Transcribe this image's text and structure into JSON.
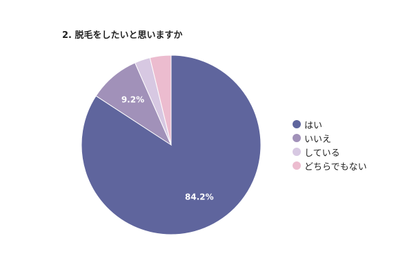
{
  "chart_data": {
    "type": "pie",
    "title": "2. 脱毛をしたいと思いますか",
    "categories": [
      "はい",
      "いいえ",
      "している",
      "どちらでもない"
    ],
    "values": [
      84.2,
      9.2,
      2.8,
      3.8
    ],
    "colors": [
      "#5f659d",
      "#a191b9",
      "#d7c8e2",
      "#ecbccf"
    ],
    "data_labels": [
      "84.2%",
      "9.2%",
      "",
      ""
    ],
    "legend_position": "right"
  }
}
